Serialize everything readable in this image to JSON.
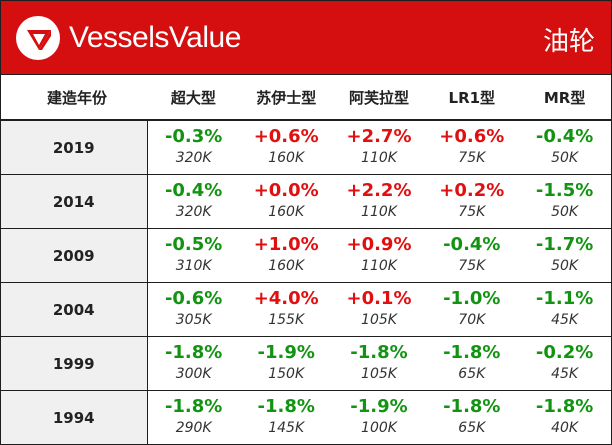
{
  "brand": {
    "name": "VesselsValue",
    "color_header": "#d50f0f"
  },
  "title": "油轮",
  "table": {
    "headers": [
      "建造年份",
      "超大型",
      "苏伊士型",
      "阿芙拉型",
      "LR1型",
      "MR型"
    ],
    "rows": [
      {
        "year": "2019",
        "cells": [
          {
            "change": "-0.3%",
            "value": "320K"
          },
          {
            "change": "+0.6%",
            "value": "160K"
          },
          {
            "change": "+2.7%",
            "value": "110K"
          },
          {
            "change": "+0.6%",
            "value": "75K"
          },
          {
            "change": "-0.4%",
            "value": "50K"
          }
        ]
      },
      {
        "year": "2014",
        "cells": [
          {
            "change": "-0.4%",
            "value": "320K"
          },
          {
            "change": "+0.0%",
            "value": "160K"
          },
          {
            "change": "+2.2%",
            "value": "110K"
          },
          {
            "change": "+0.2%",
            "value": "75K"
          },
          {
            "change": "-1.5%",
            "value": "50K"
          }
        ]
      },
      {
        "year": "2009",
        "cells": [
          {
            "change": "-0.5%",
            "value": "310K"
          },
          {
            "change": "+1.0%",
            "value": "160K"
          },
          {
            "change": "+0.9%",
            "value": "110K"
          },
          {
            "change": "-0.4%",
            "value": "75K"
          },
          {
            "change": "-1.7%",
            "value": "50K"
          }
        ]
      },
      {
        "year": "2004",
        "cells": [
          {
            "change": "-0.6%",
            "value": "305K"
          },
          {
            "change": "+4.0%",
            "value": "155K"
          },
          {
            "change": "+0.1%",
            "value": "105K"
          },
          {
            "change": "-1.0%",
            "value": "70K"
          },
          {
            "change": "-1.1%",
            "value": "45K"
          }
        ]
      },
      {
        "year": "1999",
        "cells": [
          {
            "change": "-1.8%",
            "value": "300K"
          },
          {
            "change": "-1.9%",
            "value": "150K"
          },
          {
            "change": "-1.8%",
            "value": "105K"
          },
          {
            "change": "-1.8%",
            "value": "65K"
          },
          {
            "change": "-0.2%",
            "value": "45K"
          }
        ]
      },
      {
        "year": "1994",
        "cells": [
          {
            "change": "-1.8%",
            "value": "290K"
          },
          {
            "change": "-1.8%",
            "value": "145K"
          },
          {
            "change": "-1.9%",
            "value": "100K"
          },
          {
            "change": "-1.8%",
            "value": "65K"
          },
          {
            "change": "-1.8%",
            "value": "40K"
          }
        ]
      }
    ]
  },
  "colors": {
    "negative": "#129412",
    "positive": "#e01010"
  }
}
